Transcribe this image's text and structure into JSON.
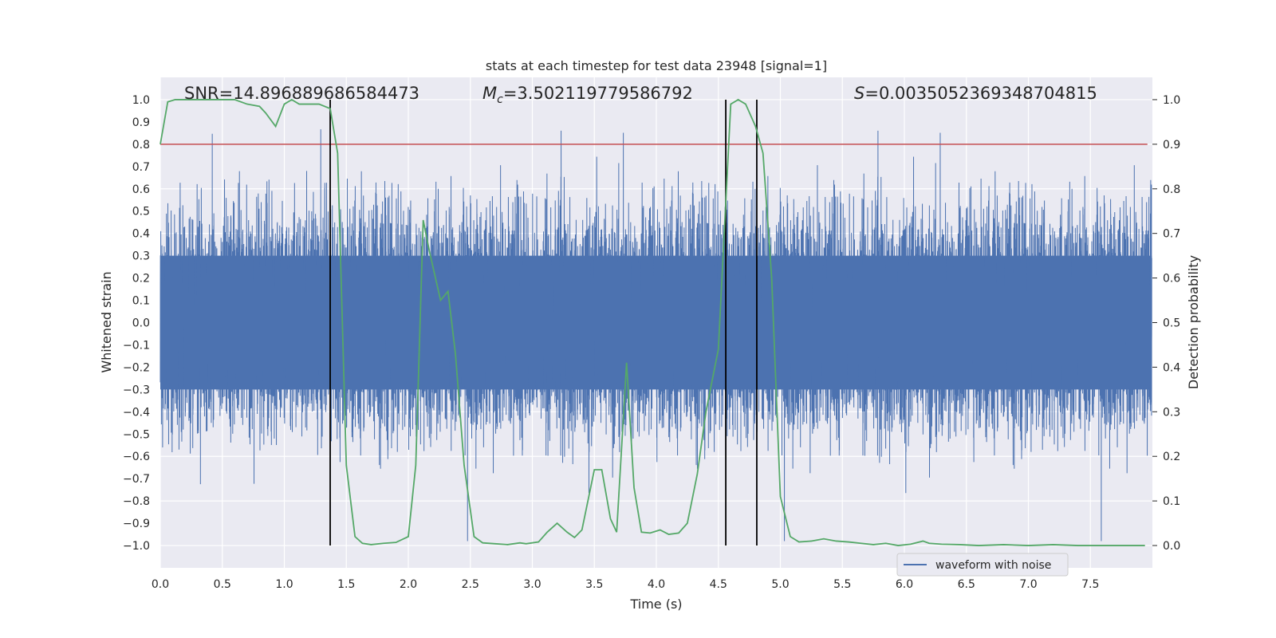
{
  "chart_data": {
    "type": "line",
    "title": "stats at each timestep for test data 23948 [signal=1]",
    "xlabel": "Time (s)",
    "ylabel": "Whitened strain",
    "ylabel_right": "Detection probability",
    "xlim": [
      0.0,
      8.0
    ],
    "ylim": [
      -1.1,
      1.1
    ],
    "ylim_right": [
      -0.05,
      1.05
    ],
    "x_ticks": [
      0.0,
      0.5,
      1.0,
      1.5,
      2.0,
      2.5,
      3.0,
      3.5,
      4.0,
      4.5,
      5.0,
      5.5,
      6.0,
      6.5,
      7.0,
      7.5
    ],
    "x_tick_labels": [
      "0.0",
      "0.5",
      "1.0",
      "1.5",
      "2.0",
      "2.5",
      "3.0",
      "3.5",
      "4.0",
      "4.5",
      "5.0",
      "5.5",
      "6.0",
      "6.5",
      "7.0",
      "7.5"
    ],
    "y_ticks": [
      -1.0,
      -0.9,
      -0.8,
      -0.7,
      -0.6,
      -0.5,
      -0.4,
      -0.3,
      -0.2,
      -0.1,
      0.0,
      0.1,
      0.2,
      0.3,
      0.4,
      0.5,
      0.6,
      0.7,
      0.8,
      0.9,
      1.0
    ],
    "y_tick_labels": [
      "−1.0",
      "−0.9",
      "−0.8",
      "−0.7",
      "−0.6",
      "−0.5",
      "−0.4",
      "−0.3",
      "−0.2",
      "−0.1",
      "0.0",
      "0.1",
      "0.2",
      "0.3",
      "0.4",
      "0.5",
      "0.6",
      "0.7",
      "0.8",
      "0.9",
      "1.0"
    ],
    "y2_ticks": [
      0.0,
      0.1,
      0.2,
      0.3,
      0.4,
      0.5,
      0.6,
      0.7,
      0.8,
      0.9,
      1.0
    ],
    "y2_tick_labels": [
      "0.0",
      "0.1",
      "0.2",
      "0.3",
      "0.4",
      "0.5",
      "0.6",
      "0.7",
      "0.8",
      "0.9",
      "1.0"
    ],
    "annotations": {
      "snr": "SNR=14.896889686584473",
      "mc_symbol": "M",
      "mc_sub": "c",
      "mc_value": "=3.502119779586792",
      "s_symbol": "S",
      "s_value": "=0.0035052369348704815"
    },
    "threshold_right": 0.9,
    "vertical_lines_x": [
      1.37,
      4.56,
      4.81
    ],
    "series": [
      {
        "name": "waveform with noise",
        "color": "#4c72b0",
        "kind": "noise",
        "sample_rate": 2048,
        "core_amplitude": 0.3,
        "spike_max": 0.98
      },
      {
        "name": "detection probability",
        "color": "#55a868",
        "axis": "right",
        "x": [
          0.0,
          0.06,
          0.12,
          0.2,
          0.3,
          0.4,
          0.5,
          0.6,
          0.7,
          0.8,
          0.85,
          0.93,
          1.0,
          1.06,
          1.12,
          1.2,
          1.28,
          1.37,
          1.43,
          1.5,
          1.57,
          1.63,
          1.7,
          1.8,
          1.9,
          2.0,
          2.06,
          2.12,
          2.17,
          2.26,
          2.32,
          2.38,
          2.45,
          2.53,
          2.6,
          2.7,
          2.8,
          2.9,
          2.95,
          3.05,
          3.12,
          3.2,
          3.28,
          3.34,
          3.4,
          3.5,
          3.56,
          3.63,
          3.68,
          3.76,
          3.82,
          3.88,
          3.95,
          4.03,
          4.1,
          4.18,
          4.25,
          4.33,
          4.4,
          4.5,
          4.6,
          4.66,
          4.72,
          4.8,
          4.86,
          4.93,
          5.0,
          5.08,
          5.15,
          5.25,
          5.35,
          5.45,
          5.55,
          5.65,
          5.75,
          5.85,
          5.95,
          6.05,
          6.15,
          6.2,
          6.3,
          6.45,
          6.6,
          6.8,
          7.0,
          7.2,
          7.4,
          7.6,
          7.8,
          7.94
        ],
        "values": [
          0.9,
          0.995,
          1.0,
          1.0,
          1.0,
          1.0,
          1.0,
          1.0,
          0.99,
          0.985,
          0.97,
          0.94,
          0.99,
          1.0,
          0.99,
          0.99,
          0.99,
          0.98,
          0.88,
          0.18,
          0.02,
          0.005,
          0.002,
          0.005,
          0.007,
          0.02,
          0.18,
          0.73,
          0.66,
          0.55,
          0.57,
          0.43,
          0.18,
          0.02,
          0.006,
          0.004,
          0.002,
          0.006,
          0.004,
          0.008,
          0.03,
          0.05,
          0.03,
          0.018,
          0.035,
          0.17,
          0.17,
          0.06,
          0.03,
          0.41,
          0.13,
          0.03,
          0.028,
          0.035,
          0.025,
          0.028,
          0.05,
          0.16,
          0.3,
          0.44,
          0.99,
          1.0,
          0.99,
          0.94,
          0.88,
          0.6,
          0.11,
          0.02,
          0.008,
          0.01,
          0.015,
          0.01,
          0.008,
          0.005,
          0.002,
          0.005,
          0.0,
          0.003,
          0.01,
          0.005,
          0.003,
          0.002,
          0.0,
          0.002,
          0.0,
          0.002,
          0.0,
          0.0,
          0.0,
          0.0
        ]
      }
    ],
    "legend": {
      "entries": [
        "waveform with noise"
      ],
      "placement": "lower-right"
    },
    "grid": true
  }
}
